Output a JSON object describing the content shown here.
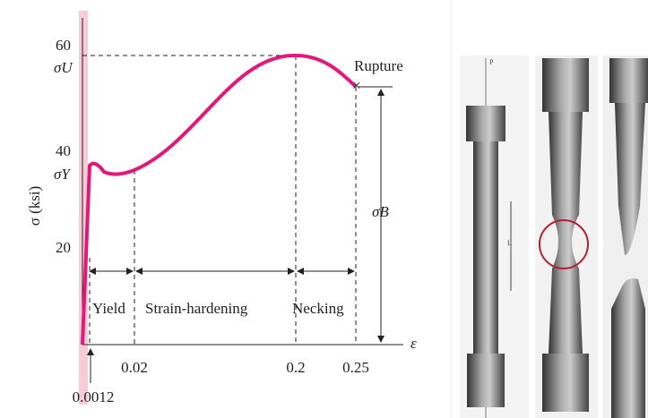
{
  "figure": {
    "y_axis": {
      "label": "σ (ksi)",
      "ticks": [
        "60",
        "40",
        "20"
      ],
      "markers": [
        "σU",
        "σY"
      ]
    },
    "x_axis": {
      "label": "ε",
      "ticks": [
        "0.02",
        "0.2",
        "0.25"
      ],
      "pointer": "0.0012"
    },
    "regions": [
      "Yield",
      "Strain-hardening",
      "Necking"
    ],
    "annotations": {
      "rupture": "Rupture",
      "breaking_stress": "σB"
    },
    "photo_labels": {
      "load": "P",
      "gauge": "L"
    }
  }
}
